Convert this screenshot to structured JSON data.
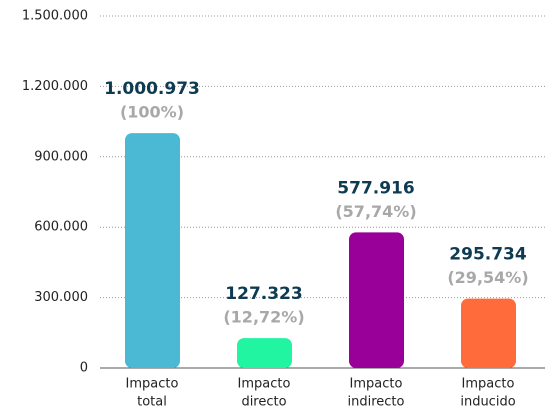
{
  "chart_data": {
    "type": "bar",
    "categories": [
      [
        "Impacto",
        "total"
      ],
      [
        "Impacto",
        "directo"
      ],
      [
        "Impacto",
        "indirecto"
      ],
      [
        "Impacto",
        "inducido"
      ]
    ],
    "values": [
      1000973,
      127323,
      577916,
      295734
    ],
    "value_labels": [
      "1.000.973",
      "127.323",
      "577.916",
      "295.734"
    ],
    "percentages": [
      100,
      12.72,
      57.74,
      29.54
    ],
    "percentage_labels": [
      "(100%)",
      "(12,72%)",
      "(57,74%)",
      "(29,54%)"
    ],
    "colors": [
      "#4bb9d4",
      "#22f5a2",
      "#990099",
      "#ff6b3b"
    ],
    "ylim": [
      0,
      1500000
    ],
    "yticks": [
      0,
      {
        "value": 300000,
        "label": "300.000"
      },
      {
        "value": 600000,
        "label": "600.000"
      },
      {
        "value": 900000,
        "label": "900.000"
      },
      {
        "value": 1200000,
        "label": "1.200.000"
      },
      {
        "value": 1500000,
        "label": "1.500.000"
      }
    ],
    "grid": true
  }
}
